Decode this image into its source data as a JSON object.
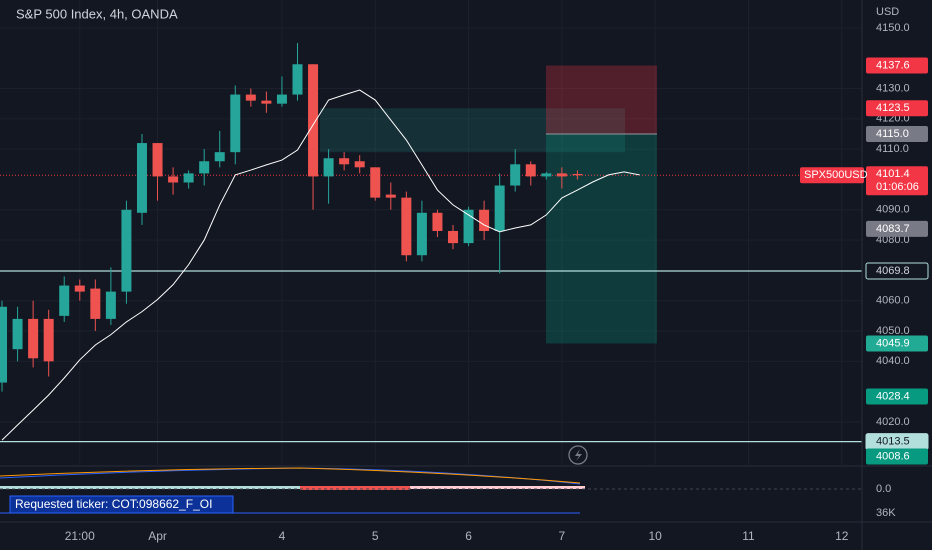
{
  "chart_data": {
    "type": "candlestick",
    "title": "S&P 500 Index, 4h, OANDA",
    "currency": "USD",
    "x": [
      0,
      1,
      2,
      3,
      4,
      5,
      6,
      7,
      8,
      9,
      10,
      11,
      12,
      13,
      14,
      15,
      16,
      17,
      18,
      19,
      20,
      21,
      22,
      23,
      24,
      25,
      26,
      27,
      28,
      29,
      30,
      31,
      32,
      33,
      34,
      35,
      36,
      37
    ],
    "open": [
      4033,
      4044,
      4054,
      4054,
      4055,
      4065,
      4064,
      4054,
      4063,
      4089,
      4112,
      4101,
      4099,
      4102,
      4106,
      4109,
      4128,
      4126,
      4125,
      4128,
      4138,
      4101,
      4107,
      4106,
      4104,
      4095,
      4094,
      4075,
      4089,
      4083,
      4079,
      4090,
      4083,
      4098,
      4105,
      4101,
      4102,
      4101.8
    ],
    "high": [
      4060,
      4058,
      4060,
      4057,
      4068,
      4067,
      4067,
      4071,
      4093,
      4115,
      4112,
      4104,
      4103,
      4110,
      4116,
      4131,
      4130,
      4129,
      4134,
      4145,
      4138,
      4110,
      4109,
      4108,
      4104,
      4099,
      4096,
      4093,
      4090,
      4085,
      4091,
      4093,
      4102,
      4110,
      4106,
      4102.5,
      4104,
      4103
    ],
    "low": [
      4030,
      4040,
      4038,
      4035,
      4053,
      4060,
      4050,
      4052,
      4059,
      4085,
      4093,
      4095,
      4097,
      4098,
      4104,
      4105,
      4124,
      4122,
      4124,
      4126,
      4090,
      4092,
      4103,
      4102,
      4093,
      4090,
      4073,
      4073,
      4081,
      4077,
      4078,
      4080,
      4069,
      4096,
      4098,
      4100,
      4097,
      4100
    ],
    "close": [
      4058,
      4054,
      4041,
      4040,
      4065,
      4063,
      4054,
      4063,
      4090,
      4112,
      4101,
      4099,
      4102,
      4106,
      4109,
      4128,
      4126,
      4125,
      4128,
      4138,
      4101,
      4107,
      4105,
      4104,
      4094,
      4094,
      4075,
      4089,
      4083,
      4079,
      4090,
      4083,
      4098,
      4105,
      4101,
      4102,
      4101,
      4101.4
    ],
    "up_color": "#26a69a",
    "down_color": "#ef5350",
    "ma": {
      "color": "#ffffff",
      "x": [
        0,
        1,
        2,
        3,
        4,
        5,
        6,
        7,
        8,
        9,
        10,
        11,
        12,
        13,
        14,
        15,
        16,
        17,
        18,
        19,
        20,
        21,
        22,
        23,
        24,
        25,
        26,
        27,
        28,
        29,
        30,
        31,
        32,
        33,
        34,
        35,
        36,
        37,
        38,
        39,
        40,
        41
      ],
      "values": [
        4014.0,
        4019.0,
        4023.9,
        4028.9,
        4034.5,
        4040.5,
        4045.4,
        4048.8,
        4053.0,
        4056.4,
        4060.4,
        4065.3,
        4071.9,
        4080.0,
        4091.6,
        4101.5,
        4103.1,
        4104.8,
        4106.4,
        4109.7,
        4118.0,
        4126.2,
        4127.9,
        4129.5,
        4126.2,
        4119.6,
        4113.0,
        4104.8,
        4096.5,
        4091.6,
        4088.3,
        4085.0,
        4082.7,
        4084.0,
        4085.0,
        4088.3,
        4093.9,
        4096.5,
        4099.2,
        4101.5,
        4102.5,
        4101.5
      ]
    },
    "xlim": [
      -0.13,
      55.3
    ],
    "ylim": [
      4005.8,
      4159.2
    ],
    "grid": true,
    "xticks": [
      {
        "value": 5,
        "label": "21:00"
      },
      {
        "value": 10,
        "label": "Apr"
      },
      {
        "value": 18,
        "label": "4"
      },
      {
        "value": 24,
        "label": "5"
      },
      {
        "value": 30,
        "label": "6"
      },
      {
        "value": 36,
        "label": "7"
      },
      {
        "value": 42,
        "label": "10"
      },
      {
        "value": 48,
        "label": "11"
      },
      {
        "value": 54,
        "label": "12"
      }
    ],
    "yticks": [
      {
        "value": 4150,
        "label": "4150.0"
      },
      {
        "value": 4130,
        "label": "4130.0"
      },
      {
        "value": 4120,
        "label": "4120.0"
      },
      {
        "value": 4110,
        "label": "4110.0"
      },
      {
        "value": 4090,
        "label": "4090.0"
      },
      {
        "value": 4080,
        "label": "4080.0"
      },
      {
        "value": 4060,
        "label": "4060.0"
      },
      {
        "value": 4050,
        "label": "4050.0"
      },
      {
        "value": 4040,
        "label": "4040.0"
      },
      {
        "value": 4020,
        "label": "4020.0"
      }
    ],
    "zone": {
      "top": 4123.5,
      "bottom": 4109
    },
    "position": {
      "stop": 4137.6,
      "entry": 4115.0,
      "target": 4045.9
    },
    "price_labels": [
      {
        "value": 4137.6,
        "color": "#f23645",
        "text_color": "#ffffff"
      },
      {
        "value": 4123.5,
        "color": "#f23645",
        "text_color": "#ffffff"
      },
      {
        "value": 4115.0,
        "label": "4115.0",
        "color": "#787b86",
        "text_color": "#ffffff"
      },
      {
        "value": 4083.7,
        "color": "#787b86",
        "text_color": "#ffffff"
      },
      {
        "value": 4069.8,
        "color": "#131722",
        "text_color": "#d1d4dc",
        "line": "#b2dfdb"
      },
      {
        "value": 4045.9,
        "color": "#22ab94",
        "text_color": "#ffffff"
      },
      {
        "value": 4028.4,
        "color": "#089981",
        "text_color": "#ffffff"
      },
      {
        "value": 4013.5,
        "color": "#b2dfdb",
        "text_color": "#131722",
        "line": "#b2dfdb"
      },
      {
        "value": 4008.6,
        "color": "#089981",
        "text_color": "#ffffff"
      }
    ],
    "last": {
      "value": 4101.4,
      "symbol": "SPX500USD",
      "countdown": "01:06:06",
      "color": "#f23645"
    },
    "indicator": {
      "label": "Requested ticker: COT:098662_F_OI",
      "ticks": [
        {
          "value": 0,
          "label": "0.0"
        },
        {
          "value": 36000,
          "label": "36K"
        }
      ]
    }
  }
}
